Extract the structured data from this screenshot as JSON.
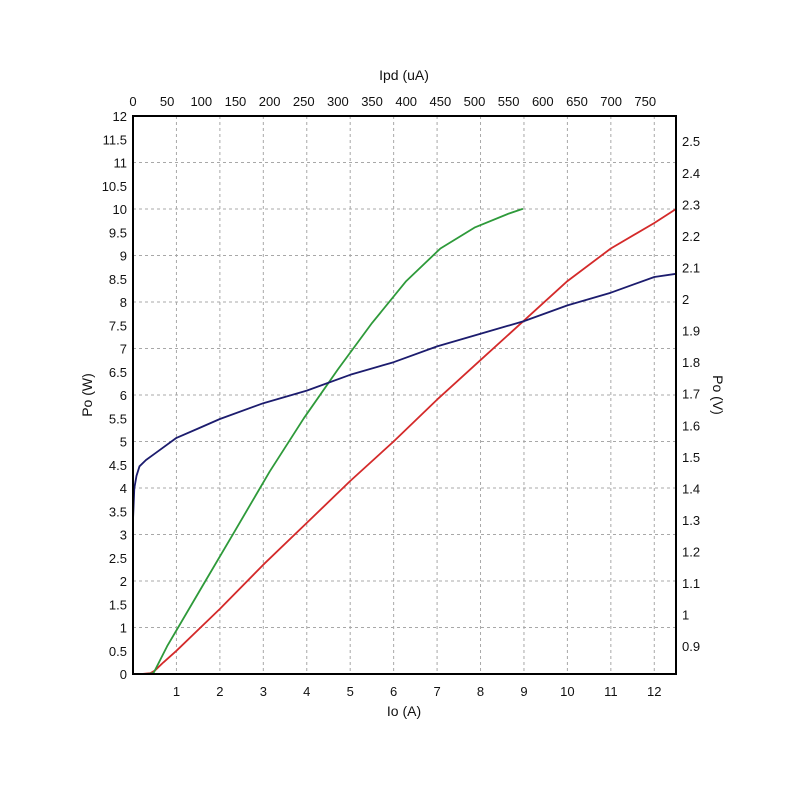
{
  "chart_data": {
    "type": "line",
    "title": "",
    "xlabel": "Io (A)",
    "x2label": "Ipd (uA)",
    "ylabel": "Po (W)",
    "y2label": "Po (V)",
    "xlim": [
      0,
      12.5
    ],
    "x2lim": [
      0,
      795
    ],
    "ylim": [
      0,
      12
    ],
    "y2lim": [
      0.812,
      2.58
    ],
    "x_ticks": [
      "1",
      "2",
      "3",
      "4",
      "5",
      "6",
      "7",
      "8",
      "9",
      "10",
      "11",
      "12"
    ],
    "x2_ticks": [
      "0",
      "50",
      "100",
      "150",
      "200",
      "250",
      "300",
      "350",
      "400",
      "450",
      "500",
      "550",
      "600",
      "650",
      "700",
      "750"
    ],
    "y_ticks": [
      "0",
      "0.5",
      "1",
      "1.5",
      "2",
      "2.5",
      "3",
      "3.5",
      "4",
      "4.5",
      "5",
      "5.5",
      "6",
      "6.5",
      "7",
      "7.5",
      "8",
      "8.5",
      "9",
      "9.5",
      "10",
      "10.5",
      "11",
      "11.5",
      "12"
    ],
    "y2_ticks": [
      "0.9",
      "1",
      "1.1",
      "1.2",
      "1.3",
      "1.4",
      "1.5",
      "1.6",
      "1.7",
      "1.8",
      "1.9",
      "2",
      "2.1",
      "2.2",
      "2.3",
      "2.4",
      "2.5"
    ],
    "grid": true,
    "colors": {
      "red": "#d42a2a",
      "green": "#2e9a3a",
      "navy": "#1c1c6e",
      "grid": "#a8a8a8",
      "axis": "#000000"
    },
    "series": [
      {
        "color": "red",
        "axis": "bottom-left",
        "x": [
          0,
          0.2,
          0.4,
          0.5,
          0.7,
          1,
          2,
          3,
          4,
          5,
          6,
          7,
          8,
          9,
          10,
          11,
          12,
          12.5
        ],
        "y": [
          0,
          0,
          0.02,
          0.07,
          0.25,
          0.5,
          1.4,
          2.35,
          3.25,
          4.15,
          5.0,
          5.9,
          6.75,
          7.6,
          8.45,
          9.15,
          9.7,
          10.0
        ]
      },
      {
        "color": "green",
        "axis": "top-left",
        "x": [
          0,
          20,
          30,
          50,
          100,
          150,
          200,
          250,
          300,
          350,
          400,
          450,
          500,
          550,
          570
        ],
        "y": [
          0,
          0,
          0.02,
          0.6,
          1.85,
          3.1,
          4.35,
          5.5,
          6.55,
          7.55,
          8.45,
          9.15,
          9.6,
          9.9,
          10.0
        ]
      },
      {
        "color": "navy",
        "axis": "bottom-right",
        "x": [
          0,
          0.03,
          0.08,
          0.15,
          0.3,
          0.5,
          1,
          1.5,
          2,
          3,
          4,
          5,
          6,
          7,
          8,
          9,
          10,
          11,
          12,
          12.5
        ],
        "y": [
          1.3,
          1.4,
          1.44,
          1.47,
          1.49,
          1.51,
          1.56,
          1.59,
          1.62,
          1.67,
          1.71,
          1.76,
          1.8,
          1.85,
          1.89,
          1.93,
          1.98,
          2.02,
          2.07,
          2.08
        ]
      }
    ]
  }
}
